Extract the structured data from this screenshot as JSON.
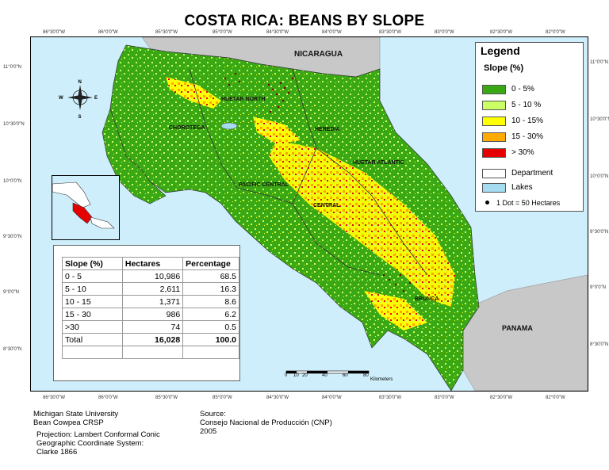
{
  "title": "COSTA RICA: BEANS BY SLOPE",
  "ticks": {
    "top": [
      "86°30'0\"W",
      "86°0'0\"W",
      "85°30'0\"W",
      "85°0'0\"W",
      "84°30'0\"W",
      "84°0'0\"W",
      "83°30'0\"W",
      "83°0'0\"W",
      "82°30'0\"W",
      "82°0'0\"W"
    ],
    "bottom": [
      "86°30'0\"W",
      "86°0'0\"W",
      "85°30'0\"W",
      "85°0'0\"W",
      "84°30'0\"W",
      "84°0'0\"W",
      "83°30'0\"W",
      "83°0'0\"W",
      "82°30'0\"W",
      "82°0'0\"W"
    ],
    "left": [
      "11°0'0\"N",
      "10°30'0\"N",
      "10°0'0\"N",
      "9°30'0\"N",
      "9°0'0\"N",
      "8°30'0\"N"
    ],
    "right": [
      "11°0'0\"N",
      "10°30'0\"N",
      "10°0'0\"N",
      "9°30'0\"N",
      "9°0'0\"N",
      "8°30'0\"N"
    ]
  },
  "places": {
    "nicaragua": "NICARAGUA",
    "panama": "PANAMA",
    "huetar_north": "HUETAR NORTH",
    "chorotega": "CHOROTEGA",
    "heredia": "HEREDIA",
    "huetar_atlantic": "HUETAR ATLANTIC",
    "pacific_central": "PACIFIC CENTRAL",
    "central": "CENTRAL",
    "brunca": "BRUNCA"
  },
  "legend": {
    "title": "Legend",
    "subtitle": "Slope (%)",
    "items": [
      {
        "label": "0 - 5%",
        "color": "#3aa815"
      },
      {
        "label": "5 - 10 %",
        "color": "#ccff66"
      },
      {
        "label": "10 - 15%",
        "color": "#ffff00"
      },
      {
        "label": "15 - 30%",
        "color": "#ffaa00"
      },
      {
        "label": "> 30%",
        "color": "#e60000"
      }
    ],
    "department": "Department",
    "lakes": "Lakes",
    "dot": "1 Dot = 50 Hectares",
    "lakes_color": "#a6dcf2"
  },
  "table": {
    "headers": [
      "Slope (%)",
      "Hectares",
      "Percentage"
    ],
    "rows": [
      [
        "0 - 5",
        "10,986",
        "68.5"
      ],
      [
        "5 - 10",
        "2,611",
        "16.3"
      ],
      [
        "10 - 15",
        "1,371",
        "8.6"
      ],
      [
        "15 - 30",
        "986",
        "6.2"
      ],
      [
        ">30",
        "74",
        "0.5"
      ]
    ],
    "total": [
      "Total",
      "16,028",
      "100.0"
    ]
  },
  "scale": {
    "ticks": [
      "0",
      "10",
      "20",
      "40",
      "60",
      "80"
    ],
    "unit": "Kilometers"
  },
  "compass": {
    "n": "N",
    "s": "S",
    "e": "E",
    "w": "W"
  },
  "footer": {
    "org_line1": "Michigan State University",
    "org_line2": "Bean Cowpea CRSP",
    "proj_line1": "Projection: Lambert Conformal Conic",
    "proj_line2": "Geographic Coordinate System:",
    "proj_line3": "Clarke 1866",
    "source_line1": "Source:",
    "source_line2": "Consejo Nacional de Producción (CNP)",
    "source_line3": "2005"
  }
}
